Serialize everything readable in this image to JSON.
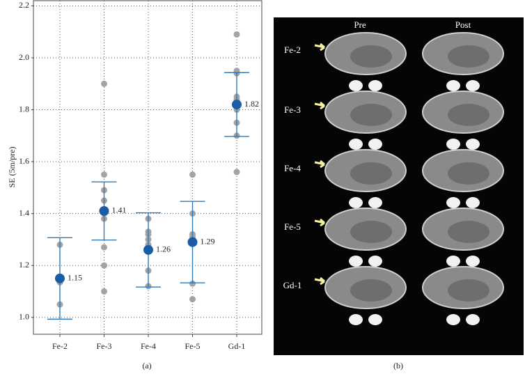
{
  "chart_data": {
    "type": "dot",
    "ylabel": "SE (5m/pre)",
    "categories": [
      "Fe-2",
      "Fe-3",
      "Fe-4",
      "Fe-5",
      "Gd-1"
    ],
    "values": [
      1.15,
      1.41,
      1.26,
      1.29,
      1.82
    ],
    "errors": [
      0.157,
      0.112,
      0.143,
      0.157,
      0.123
    ],
    "points": [
      [
        1.28,
        1.14,
        1.135,
        1.05
      ],
      [
        1.9,
        1.55,
        1.49,
        1.45,
        1.4,
        1.38,
        1.27,
        1.2,
        1.1
      ],
      [
        1.38,
        1.33,
        1.32,
        1.3,
        1.28,
        1.18,
        1.12
      ],
      [
        1.55,
        1.4,
        1.32,
        1.31,
        1.13,
        1.07
      ],
      [
        2.09,
        1.95,
        1.94,
        1.85,
        1.84,
        1.8,
        1.75,
        1.7,
        1.56
      ]
    ],
    "color": "#1a5da6",
    "error_color": "#2f7ab9",
    "point_color": "#a3a3a3",
    "ylim": [
      0.935,
      2.22
    ],
    "yticks": [
      {
        "value": 1.0,
        "label": "1.0"
      },
      1.2,
      1.4,
      1.6,
      1.8,
      {
        "value": 2.0,
        "label": "2.0"
      },
      2.2
    ],
    "grid": true,
    "panel_label": "(a)"
  },
  "image_panel": {
    "columns": [
      "Pre",
      "Post"
    ],
    "rows": [
      "Fe-2",
      "Fe-3",
      "Fe-4",
      "Fe-5",
      "Gd-1"
    ],
    "panel_label": "(b)"
  }
}
